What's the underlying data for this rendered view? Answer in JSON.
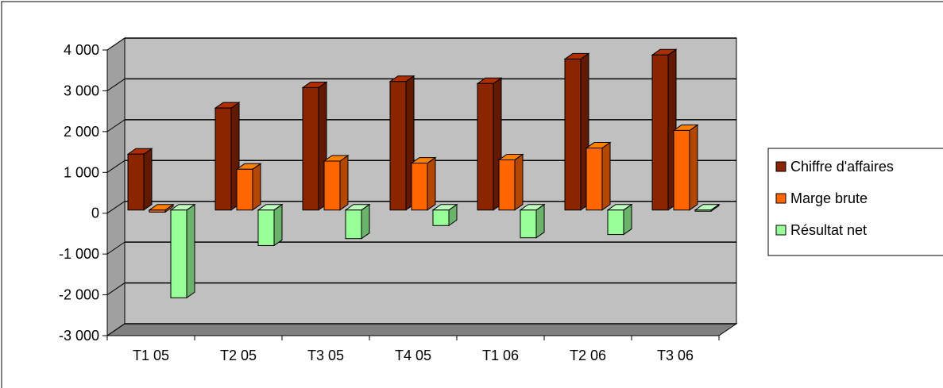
{
  "chart_data": {
    "type": "bar",
    "title": "",
    "xlabel": "",
    "ylabel": "",
    "categories": [
      "T1 05",
      "T2 05",
      "T3 05",
      "T4 05",
      "T1 06",
      "T2 06",
      "T3 06"
    ],
    "series": [
      {
        "name": "Chiffre d'affaires",
        "values": [
          1370,
          2500,
          3000,
          3150,
          3100,
          3700,
          3800
        ],
        "color": "#8B2500"
      },
      {
        "name": "Marge brute",
        "values": [
          -50,
          1000,
          1200,
          1150,
          1230,
          1520,
          1950
        ],
        "color": "#FF6600"
      },
      {
        "name": "Résultat net",
        "values": [
          -2150,
          -870,
          -700,
          -380,
          -680,
          -600,
          0
        ],
        "color": "#99FF99"
      }
    ],
    "ylim": [
      -3000,
      4000
    ],
    "yticks": [
      "4 000",
      "3 000",
      "2 000",
      "1 000",
      "0",
      "-1 000",
      "-2 000",
      "-3 000"
    ],
    "grid": true,
    "three_d": true,
    "wall_color": "#C0C0C0",
    "floor_color": "#808080",
    "legend_position": "right"
  }
}
